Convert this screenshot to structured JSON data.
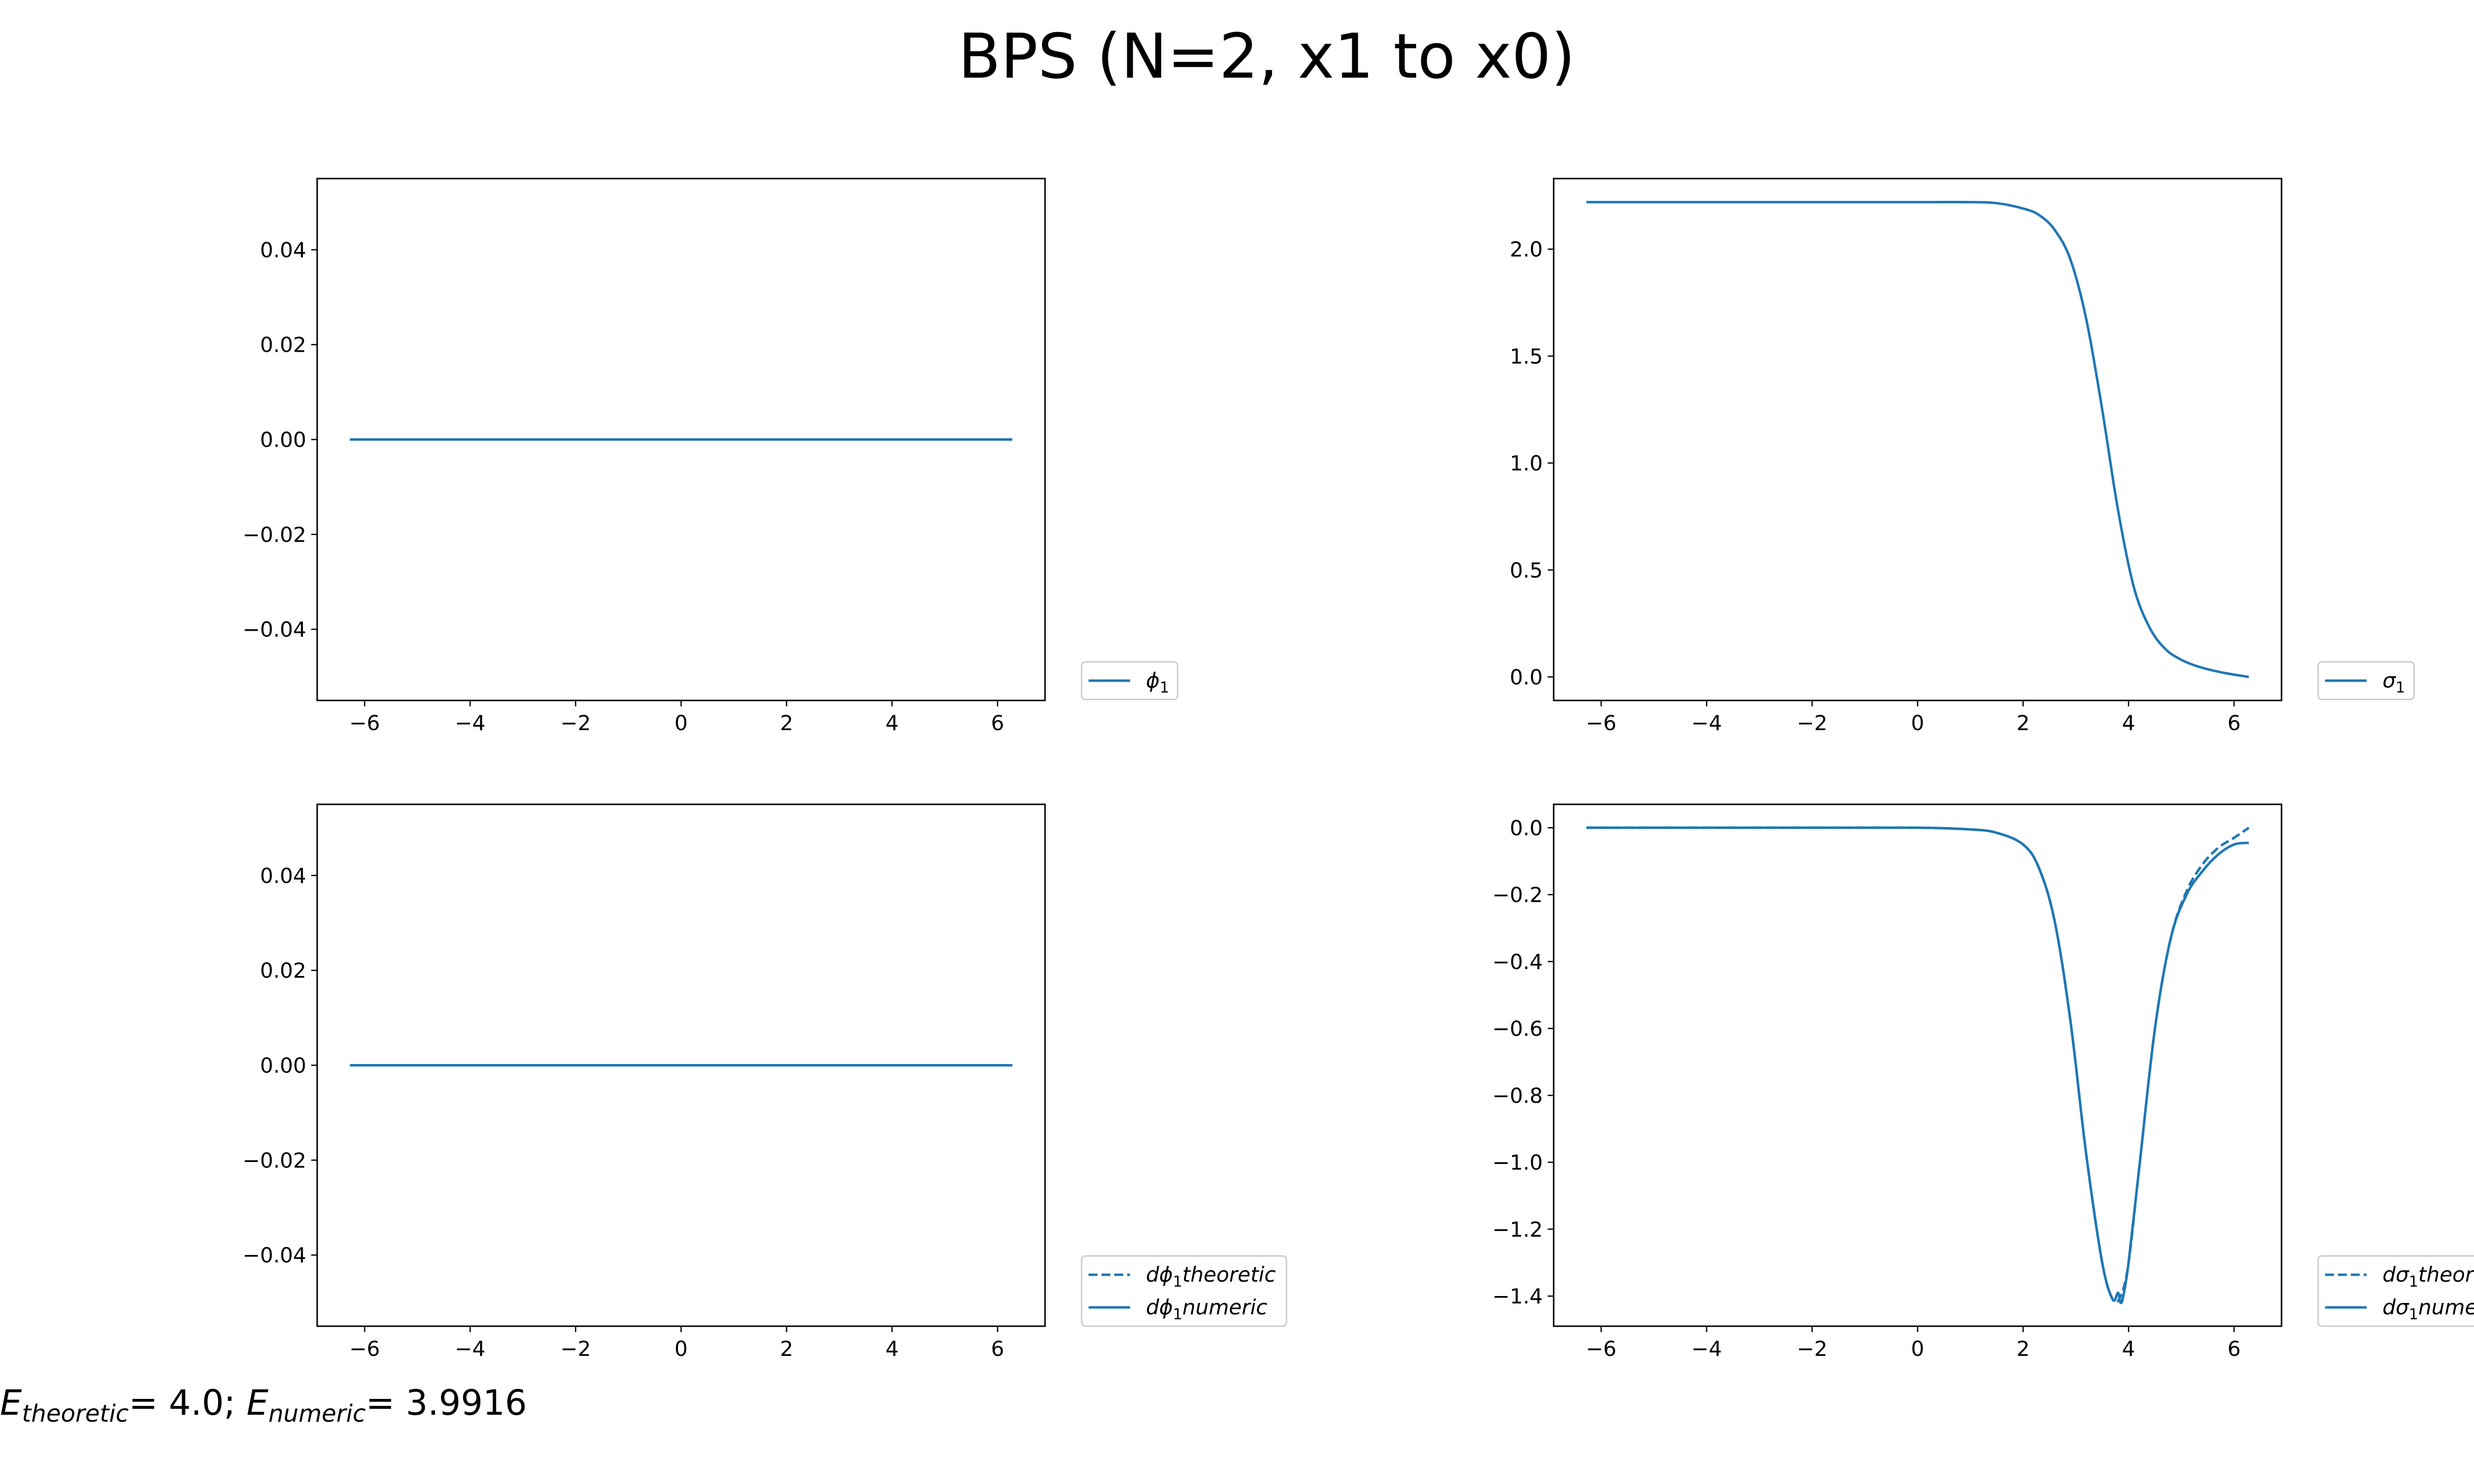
{
  "figure_title": "BPS (N=2, x1 to x0)",
  "energy": {
    "theoretic_symbol": "E",
    "theoretic_sub": "theoretic",
    "theoretic_value": "= 4.0; ",
    "numeric_symbol": "E",
    "numeric_sub": "numeric",
    "numeric_value": "= 3.9916"
  },
  "colors": {
    "series": "#1f77b4",
    "axes": "#000000"
  },
  "chart_data": [
    {
      "type": "line",
      "title": "",
      "xlabel": "",
      "ylabel": "",
      "xlim": [
        -6.9,
        6.9
      ],
      "ylim": [
        -0.055,
        0.055
      ],
      "xticks": [
        -6,
        -4,
        -2,
        0,
        2,
        4,
        6
      ],
      "yticks": [
        0.04,
        0.02,
        0.0,
        -0.02,
        -0.04
      ],
      "ytick_labels": [
        "0.04",
        "0.02",
        "0.00",
        "−0.02",
        "−0.04"
      ],
      "legend_position": "outside-lower-right",
      "series": [
        {
          "name": "ϕ",
          "name_sub": "1",
          "style": "solid",
          "x": [
            -6.28,
            -4,
            -2,
            0,
            2,
            4,
            6.28
          ],
          "y": [
            0,
            0,
            0,
            0,
            0,
            0,
            0
          ]
        }
      ]
    },
    {
      "type": "line",
      "title": "",
      "xlabel": "",
      "ylabel": "",
      "xlim": [
        -6.9,
        6.9
      ],
      "ylim": [
        -0.11,
        2.33
      ],
      "xticks": [
        -6,
        -4,
        -2,
        0,
        2,
        4,
        6
      ],
      "yticks": [
        2.0,
        1.5,
        1.0,
        0.5,
        0.0
      ],
      "ytick_labels": [
        "2.0",
        "1.5",
        "1.0",
        "0.5",
        "0.0"
      ],
      "legend_position": "outside-lower-right",
      "series": [
        {
          "name": "σ",
          "name_sub": "1",
          "style": "solid",
          "x": [
            -6.28,
            -4,
            -2,
            0,
            1,
            1.5,
            2,
            2.3,
            2.6,
            2.9,
            3.2,
            3.5,
            3.8,
            4.1,
            4.4,
            4.7,
            5.0,
            5.3,
            5.6,
            5.9,
            6.28
          ],
          "y": [
            2.22,
            2.22,
            2.22,
            2.22,
            2.22,
            2.215,
            2.19,
            2.16,
            2.09,
            1.95,
            1.67,
            1.25,
            0.78,
            0.42,
            0.23,
            0.13,
            0.08,
            0.05,
            0.03,
            0.015,
            0.0
          ]
        }
      ]
    },
    {
      "type": "line",
      "title": "",
      "xlabel": "",
      "ylabel": "",
      "xlim": [
        -6.9,
        6.9
      ],
      "ylim": [
        -0.055,
        0.055
      ],
      "xticks": [
        -6,
        -4,
        -2,
        0,
        2,
        4,
        6
      ],
      "yticks": [
        0.04,
        0.02,
        0.0,
        -0.02,
        -0.04
      ],
      "ytick_labels": [
        "0.04",
        "0.02",
        "0.00",
        "−0.02",
        "−0.04"
      ],
      "legend_position": "outside-lower-right",
      "series": [
        {
          "name": "dϕ",
          "name_sub": "1",
          "name_tail": "theoretic",
          "style": "dashed",
          "x": [
            -6.28,
            -4,
            -2,
            0,
            2,
            4,
            6.28
          ],
          "y": [
            0,
            0,
            0,
            0,
            0,
            0,
            0
          ]
        },
        {
          "name": "dϕ",
          "name_sub": "1",
          "name_tail": "numeric",
          "style": "solid",
          "x": [
            -6.28,
            -4,
            -2,
            0,
            2,
            4,
            6.28
          ],
          "y": [
            0,
            0,
            0,
            0,
            0,
            0,
            0
          ]
        }
      ]
    },
    {
      "type": "line",
      "title": "",
      "xlabel": "",
      "ylabel": "",
      "xlim": [
        -6.9,
        6.9
      ],
      "ylim": [
        -1.49,
        0.07
      ],
      "xticks": [
        -6,
        -4,
        -2,
        0,
        2,
        4,
        6
      ],
      "yticks": [
        0.0,
        -0.2,
        -0.4,
        -0.6,
        -0.8,
        -1.0,
        -1.2,
        -1.4
      ],
      "ytick_labels": [
        "0.0",
        "−0.2",
        "−0.4",
        "−0.6",
        "−0.8",
        "−1.0",
        "−1.2",
        "−1.4"
      ],
      "legend_position": "outside-lower-right",
      "series": [
        {
          "name": "dσ",
          "name_sub": "1",
          "name_tail": "theoretic",
          "style": "dashed",
          "x": [
            -6.28,
            -4,
            -2,
            0,
            1,
            1.5,
            2,
            2.3,
            2.6,
            2.9,
            3.2,
            3.5,
            3.7,
            3.85,
            4.0,
            4.2,
            4.5,
            4.8,
            5.1,
            5.4,
            5.7,
            6.0,
            6.28
          ],
          "y": [
            0,
            0,
            0,
            0,
            -0.005,
            -0.015,
            -0.05,
            -0.12,
            -0.28,
            -0.58,
            -0.98,
            -1.3,
            -1.41,
            -1.4,
            -1.3,
            -1.02,
            -0.6,
            -0.33,
            -0.19,
            -0.11,
            -0.06,
            -0.03,
            0.0
          ]
        },
        {
          "name": "dσ",
          "name_sub": "1",
          "name_tail": "numeric",
          "style": "solid",
          "x": [
            -6.28,
            -4,
            -2,
            0,
            1,
            1.5,
            2,
            2.3,
            2.6,
            2.9,
            3.2,
            3.5,
            3.7,
            3.8,
            3.85,
            3.9,
            4.0,
            4.2,
            4.5,
            4.8,
            5.1,
            5.4,
            5.7,
            6.0,
            6.28
          ],
          "y": [
            0,
            0,
            0,
            0,
            -0.005,
            -0.015,
            -0.05,
            -0.12,
            -0.28,
            -0.58,
            -0.98,
            -1.3,
            -1.41,
            -1.39,
            -1.42,
            -1.4,
            -1.3,
            -1.02,
            -0.6,
            -0.33,
            -0.2,
            -0.13,
            -0.08,
            -0.05,
            -0.045
          ]
        }
      ]
    }
  ]
}
